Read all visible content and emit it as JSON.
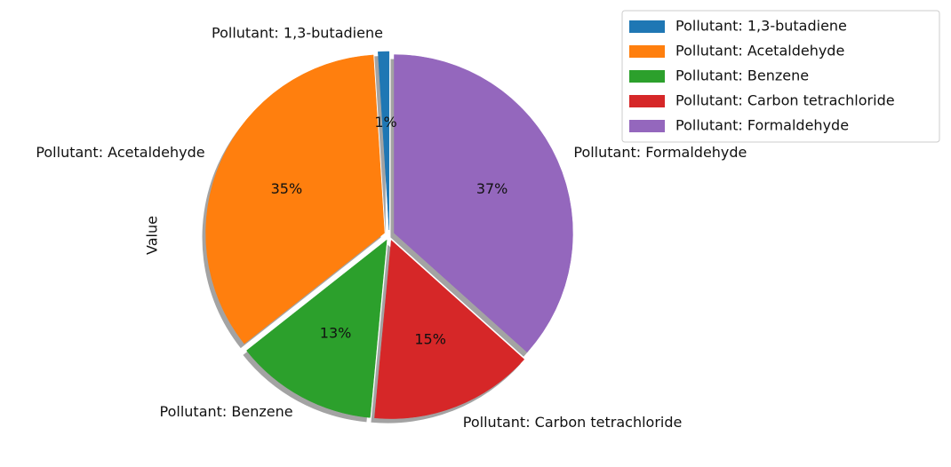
{
  "chart_data": {
    "type": "pie",
    "ylabel": "Value",
    "categories": [
      "Pollutant: 1,3-butadiene",
      "Pollutant: Acetaldehyde",
      "Pollutant: Benzene",
      "Pollutant: Carbon tetrachloride",
      "Pollutant: Formaldehyde"
    ],
    "values": [
      1,
      35,
      13,
      15,
      37
    ],
    "value_labels": [
      "1%",
      "35%",
      "13%",
      "15%",
      "37%"
    ],
    "colors": [
      "#1f77b4",
      "#ff7f0e",
      "#2ca02c",
      "#d62728",
      "#9467bd"
    ],
    "start_angle": 90,
    "shadow": true,
    "legend": "upper right"
  }
}
